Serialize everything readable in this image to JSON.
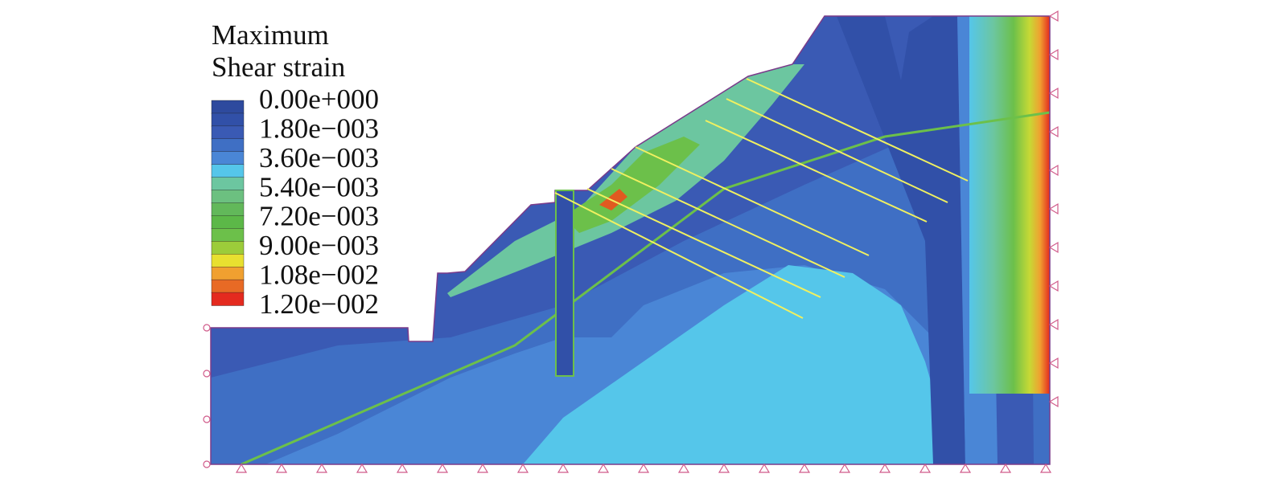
{
  "legend": {
    "title_lines": [
      "Maximum",
      "Shear strain"
    ],
    "labels": [
      "0.00e+000",
      "1.80e−003",
      "3.60e−003",
      "5.40e−003",
      "7.20e−003",
      "9.00e−003",
      "1.08e−002",
      "1.20e−002"
    ]
  }
}
